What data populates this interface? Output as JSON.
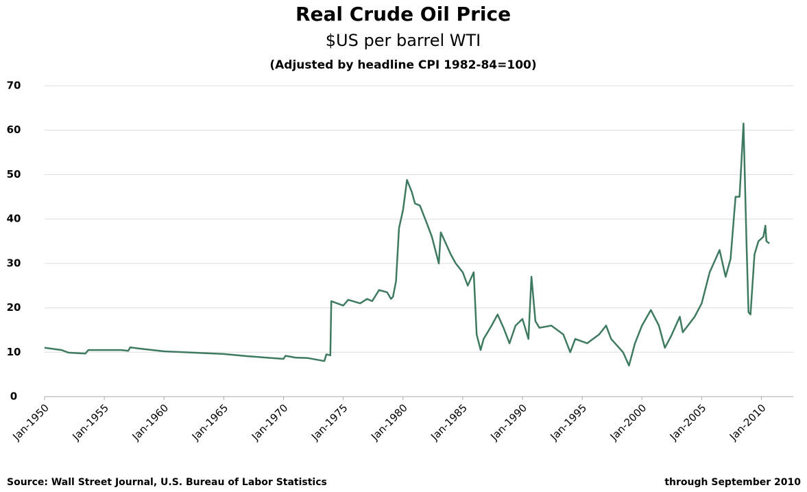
{
  "chart_data": {
    "type": "line",
    "title": "Real Crude Oil Price",
    "subtitle": "$US per barrel WTI",
    "subtitle2": "(Adjusted by headline CPI 1982-84=100)",
    "source": "Source: Wall Street Journal, U.S. Bureau of Labor Statistics",
    "note": "through September 2010",
    "grid": true,
    "ylim": [
      0,
      70
    ],
    "yticks": [
      0,
      10,
      20,
      30,
      40,
      50,
      60,
      70
    ],
    "xlim": [
      "1950-01",
      "2012-09"
    ],
    "xticks": [
      {
        "value": "1950-01",
        "label": "Jan-1950"
      },
      {
        "value": "1955-01",
        "label": "Jan-1955"
      },
      {
        "value": "1960-01",
        "label": "Jan-1960"
      },
      {
        "value": "1965-01",
        "label": "Jan-1965"
      },
      {
        "value": "1970-01",
        "label": "Jan-1970"
      },
      {
        "value": "1975-01",
        "label": "Jan-1975"
      },
      {
        "value": "1980-01",
        "label": "Jan-1980"
      },
      {
        "value": "1985-01",
        "label": "Jan-1985"
      },
      {
        "value": "1990-01",
        "label": "Jan-1990"
      },
      {
        "value": "1995-01",
        "label": "Jan-1995"
      },
      {
        "value": "2000-01",
        "label": "Jan-2000"
      },
      {
        "value": "2005-01",
        "label": "Jan-2005"
      },
      {
        "value": "2010-01",
        "label": "Jan-2010"
      }
    ],
    "x": [
      "1950-01",
      "1951-06",
      "1952-01",
      "1953-06",
      "1953-09",
      "1956-06",
      "1957-01",
      "1957-03",
      "1958-01",
      "1960-01",
      "1965-01",
      "1967-01",
      "1970-01",
      "1970-03",
      "1971-01",
      "1972-01",
      "1973-06",
      "1973-08",
      "1973-12",
      "1974-01",
      "1975-01",
      "1975-06",
      "1976-06",
      "1977-01",
      "1977-06",
      "1978-01",
      "1978-09",
      "1979-01",
      "1979-03",
      "1979-06",
      "1979-09",
      "1980-01",
      "1980-05",
      "1980-10",
      "1981-01",
      "1981-06",
      "1982-01",
      "1982-06",
      "1983-01",
      "1983-03",
      "1983-09",
      "1984-01",
      "1984-06",
      "1985-01",
      "1985-06",
      "1985-12",
      "1986-03",
      "1986-07",
      "1986-10",
      "1987-06",
      "1987-12",
      "1988-06",
      "1988-12",
      "1989-06",
      "1990-01",
      "1990-07",
      "1990-10",
      "1991-02",
      "1991-06",
      "1992-06",
      "1993-06",
      "1994-01",
      "1994-06",
      "1995-06",
      "1996-06",
      "1997-01",
      "1997-06",
      "1998-06",
      "1998-12",
      "1999-06",
      "2000-01",
      "2000-10",
      "2001-06",
      "2001-12",
      "2002-06",
      "2003-03",
      "2003-06",
      "2004-06",
      "2005-01",
      "2005-09",
      "2006-01",
      "2006-07",
      "2007-01",
      "2007-06",
      "2007-11",
      "2008-03",
      "2008-07",
      "2008-10",
      "2008-12",
      "2009-02",
      "2009-06",
      "2009-10",
      "2010-03",
      "2010-05",
      "2010-06",
      "2010-09"
    ],
    "series": [
      {
        "name": "Real Crude Oil Price",
        "color": "#3d7a5f",
        "values": [
          11,
          10.5,
          9.9,
          9.7,
          10.5,
          10.5,
          10.3,
          11.1,
          10.8,
          10.2,
          9.6,
          9.1,
          8.5,
          9.2,
          8.8,
          8.7,
          8.0,
          9.5,
          9.3,
          21.5,
          20.5,
          21.8,
          21.0,
          22.0,
          21.5,
          24.0,
          23.5,
          22,
          22.5,
          26,
          38,
          42,
          48.8,
          46,
          43.5,
          43,
          39,
          36,
          30,
          37,
          34,
          32,
          30,
          28,
          25,
          28,
          14,
          10.5,
          13,
          16,
          18.5,
          15.5,
          12,
          16,
          17.5,
          13,
          27,
          17,
          15.5,
          16,
          14,
          10,
          13,
          12,
          14,
          16,
          13,
          10,
          7,
          12,
          16,
          19.5,
          16,
          11,
          13.5,
          18,
          14.5,
          18,
          21,
          28,
          30,
          33,
          27,
          31,
          45,
          45,
          61.5,
          35,
          19,
          18.5,
          32,
          35,
          36,
          38.5,
          35,
          34.5
        ]
      }
    ]
  }
}
